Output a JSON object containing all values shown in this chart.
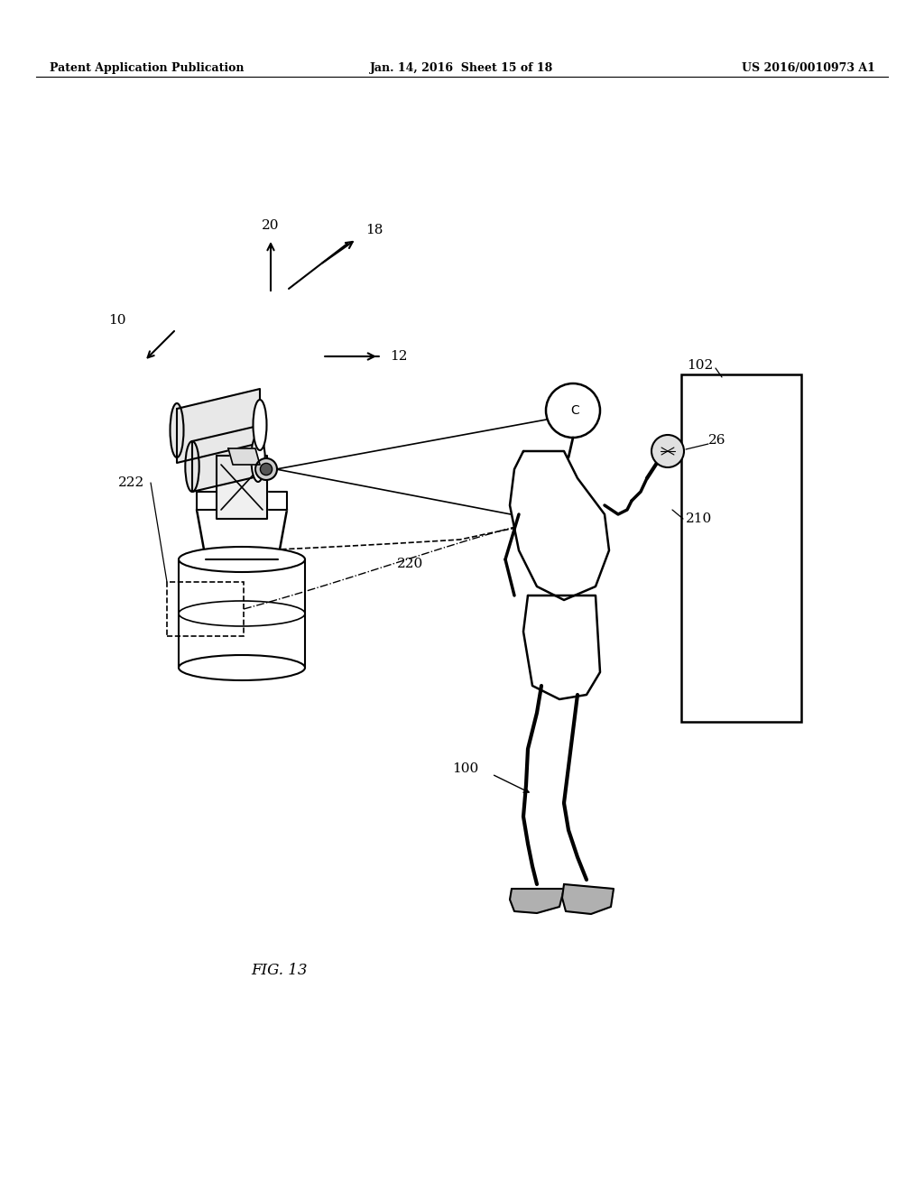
{
  "bg_color": "#ffffff",
  "line_color": "#000000",
  "header_left": "Patent Application Publication",
  "header_mid": "Jan. 14, 2016  Sheet 15 of 18",
  "header_right": "US 2016/0010973 A1",
  "fig_label": "FIG. 13"
}
